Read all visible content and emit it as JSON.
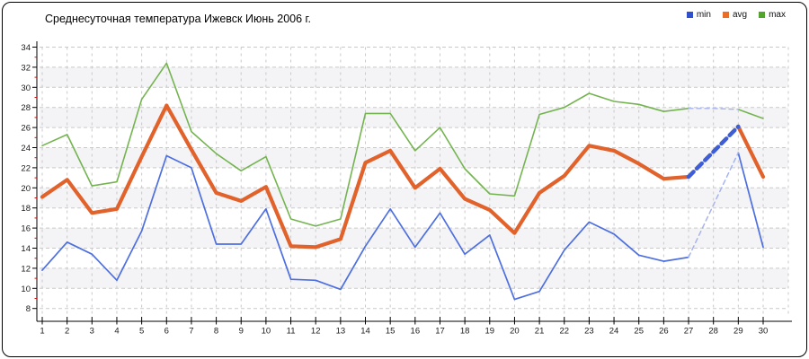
{
  "title": "Среднесуточная температура Ижевск  Июнь 2006 г.",
  "legend": [
    {
      "label": "min",
      "color": "#3050cf"
    },
    {
      "label": "avg",
      "color": "#ea6d28"
    },
    {
      "label": "max",
      "color": "#53a42c"
    }
  ],
  "chart_data": {
    "type": "line",
    "title": "Среднесуточная температура Ижевск  Июнь 2006 г.",
    "xlabel": "",
    "ylabel": "",
    "days": [
      1,
      2,
      3,
      4,
      5,
      6,
      7,
      8,
      9,
      10,
      11,
      12,
      13,
      14,
      15,
      16,
      17,
      18,
      19,
      20,
      21,
      22,
      23,
      24,
      25,
      26,
      27,
      28,
      29,
      30
    ],
    "y_ticks": [
      8,
      10,
      12,
      14,
      16,
      18,
      20,
      22,
      24,
      26,
      28,
      30,
      32,
      34
    ],
    "ylim": [
      8,
      34
    ],
    "grid": {
      "horizontal_step": 2,
      "vertical_step_days": 1,
      "dashed": true,
      "minor_tick_step": 1
    },
    "legend_position": "top-right",
    "series": [
      {
        "name": "min",
        "color": "#4e6fe0",
        "width": 1.7,
        "values": [
          11.8,
          14.6,
          13.4,
          10.8,
          15.7,
          23.2,
          22.0,
          14.4,
          14.4,
          17.9,
          10.9,
          10.8,
          9.9,
          14.2,
          17.9,
          14.1,
          17.5,
          13.4,
          15.3,
          8.9,
          9.7,
          13.8,
          16.6,
          15.4,
          13.3,
          12.7,
          13.1,
          18.3,
          23.5,
          14.1
        ]
      },
      {
        "name": "avg",
        "color": "#e2622c",
        "width": 4.2,
        "values": [
          19.1,
          20.8,
          17.5,
          17.9,
          23.1,
          28.2,
          23.8,
          19.5,
          18.7,
          20.1,
          14.2,
          14.1,
          14.9,
          22.5,
          23.7,
          20.0,
          21.9,
          18.9,
          17.8,
          15.5,
          19.5,
          21.2,
          24.2,
          23.7,
          22.4,
          20.9,
          21.1,
          23.6,
          26.1,
          21.1
        ]
      },
      {
        "name": "max",
        "color": "#74b450",
        "width": 1.6,
        "values": [
          24.2,
          25.3,
          20.2,
          20.6,
          28.8,
          32.4,
          25.6,
          23.4,
          21.7,
          23.1,
          16.9,
          16.2,
          16.9,
          27.4,
          27.4,
          23.7,
          26.0,
          21.9,
          19.4,
          19.2,
          27.3,
          28.0,
          29.4,
          28.6,
          28.3,
          27.6,
          27.9,
          27.9,
          27.8,
          26.9
        ]
      }
    ],
    "interpolated_gap": {
      "from_day": 27,
      "to_day": 29,
      "missing_day": 28,
      "thick_dash_color": "#3f5ed6",
      "thin_dash_color": "#a6b4f0"
    },
    "style": {
      "band_fill": "#f4f4f6",
      "gridline_color": "#c9c9c9",
      "axis_color": "#000000",
      "minor_tick_color": "#cc1111"
    }
  }
}
